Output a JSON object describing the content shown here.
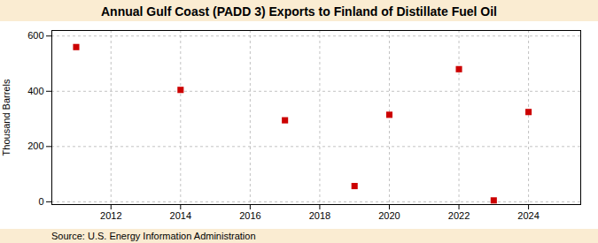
{
  "chart_data": {
    "type": "scatter",
    "title": "Annual Gulf Coast (PADD 3) Exports to Finland of Distillate Fuel Oil",
    "ylabel": "Thousand Barrels",
    "annotations": [
      "Source: U.S. Energy Information Administration"
    ],
    "x": [
      2011,
      2014,
      2017,
      2019,
      2020,
      2022,
      2023,
      2024
    ],
    "values": [
      560,
      405,
      295,
      57,
      315,
      480,
      5,
      325
    ],
    "xlim": [
      2010.3,
      2025.5
    ],
    "ylim": [
      -10,
      620
    ],
    "xticks": [
      2012,
      2014,
      2016,
      2018,
      2020,
      2022,
      2024
    ],
    "yticks": [
      0,
      200,
      400,
      600
    ],
    "color": "#cc0000",
    "marker": "square",
    "grid": true
  }
}
